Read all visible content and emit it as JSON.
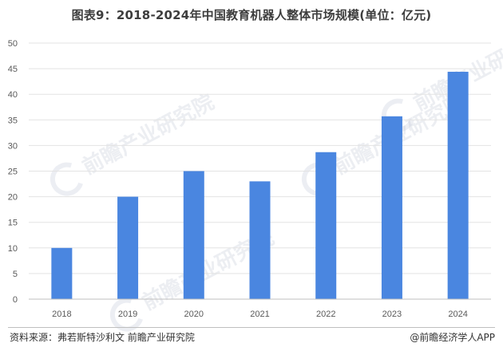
{
  "title": "图表9：2018-2024年中国教育机器人整体市场规模(单位：亿元)",
  "footer": {
    "source": "资料来源：弗若斯特沙利文 前瞻产业研究院",
    "app": "@前瞻经济学人APP"
  },
  "watermark": {
    "text": "前瞻产业研究院"
  },
  "colors": {
    "bar": "#4a86e0",
    "grid": "#e3e3e3",
    "axis": "#bfbfbf"
  },
  "chart_data": {
    "type": "bar",
    "title": "图表9：2018-2024年中国教育机器人整体市场规模(单位：亿元)",
    "categories": [
      "2018",
      "2019",
      "2020",
      "2021",
      "2022",
      "2023",
      "2024"
    ],
    "values": [
      10,
      20,
      25,
      23,
      28.7,
      35.7,
      44.4
    ],
    "ylim": [
      0,
      50
    ],
    "yticks": [
      0,
      5,
      10,
      15,
      20,
      25,
      30,
      35,
      40,
      45,
      50
    ],
    "grid": true,
    "legend": "none"
  }
}
